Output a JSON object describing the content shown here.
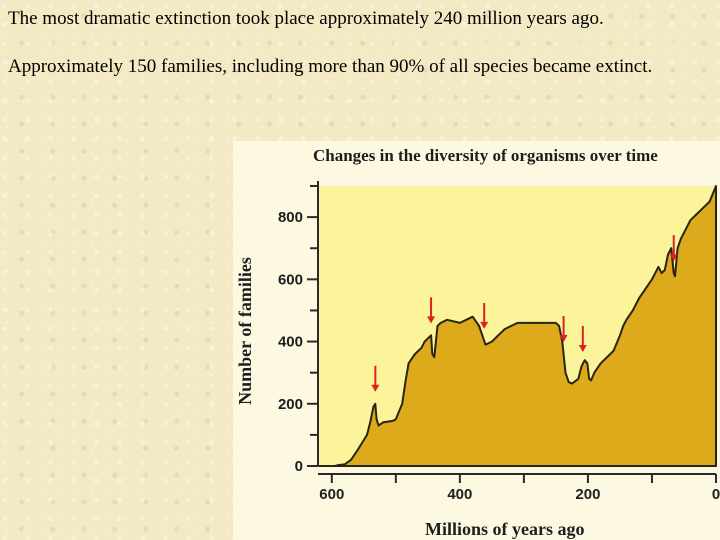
{
  "slide": {
    "paragraph1": "The most dramatic extinction took place approximately 240 million years ago.",
    "paragraph2": "Approximately 150 families, including more than 90% of all species became extinct."
  },
  "colors": {
    "background": "#f3e9c4",
    "plot_background": "#fcf49a",
    "area_fill": "#dcaa1a",
    "arrow": "#d8231e",
    "text": "#1e1e1e"
  },
  "chart_data": {
    "type": "area",
    "title": "Changes in the diversity of organisms over time",
    "xlabel": "Millions of years ago",
    "ylabel": "Number of families",
    "xlim": [
      620,
      0
    ],
    "ylim": [
      0,
      900
    ],
    "x_ticks": [
      600,
      400,
      200,
      0
    ],
    "y_ticks": [
      0,
      200,
      400,
      600,
      800
    ],
    "grid": false,
    "series": [
      {
        "x": [
          620,
          605,
          595,
          590,
          580,
          570,
          560,
          545,
          540,
          535,
          532,
          530,
          527,
          520,
          505,
          500,
          490,
          485,
          480,
          470,
          465,
          460,
          455,
          450,
          445,
          443,
          440,
          435,
          430,
          420,
          410,
          400,
          390,
          380,
          370,
          365,
          360,
          355,
          350,
          340,
          330,
          310,
          290,
          270,
          255,
          250,
          245,
          240,
          235,
          230,
          225,
          215,
          210,
          205,
          201,
          198,
          195,
          190,
          180,
          170,
          160,
          150,
          145,
          140,
          130,
          120,
          110,
          100,
          95,
          90,
          85,
          80,
          75,
          70,
          66,
          64,
          60,
          55,
          50,
          40,
          30,
          20,
          10,
          0
        ],
        "values": [
          0,
          0,
          0,
          3,
          5,
          20,
          50,
          100,
          140,
          190,
          200,
          150,
          130,
          140,
          145,
          150,
          200,
          270,
          330,
          360,
          370,
          380,
          400,
          410,
          420,
          360,
          350,
          450,
          460,
          470,
          465,
          460,
          470,
          480,
          450,
          420,
          390,
          395,
          400,
          420,
          440,
          460,
          460,
          460,
          460,
          460,
          450,
          400,
          300,
          270,
          265,
          280,
          320,
          340,
          330,
          280,
          275,
          300,
          330,
          350,
          370,
          420,
          450,
          470,
          500,
          540,
          570,
          600,
          620,
          640,
          620,
          630,
          680,
          700,
          620,
          610,
          700,
          730,
          750,
          790,
          810,
          830,
          850,
          900
        ]
      }
    ],
    "extinction_events": [
      532,
      445,
      362,
      238,
      208,
      66
    ]
  }
}
